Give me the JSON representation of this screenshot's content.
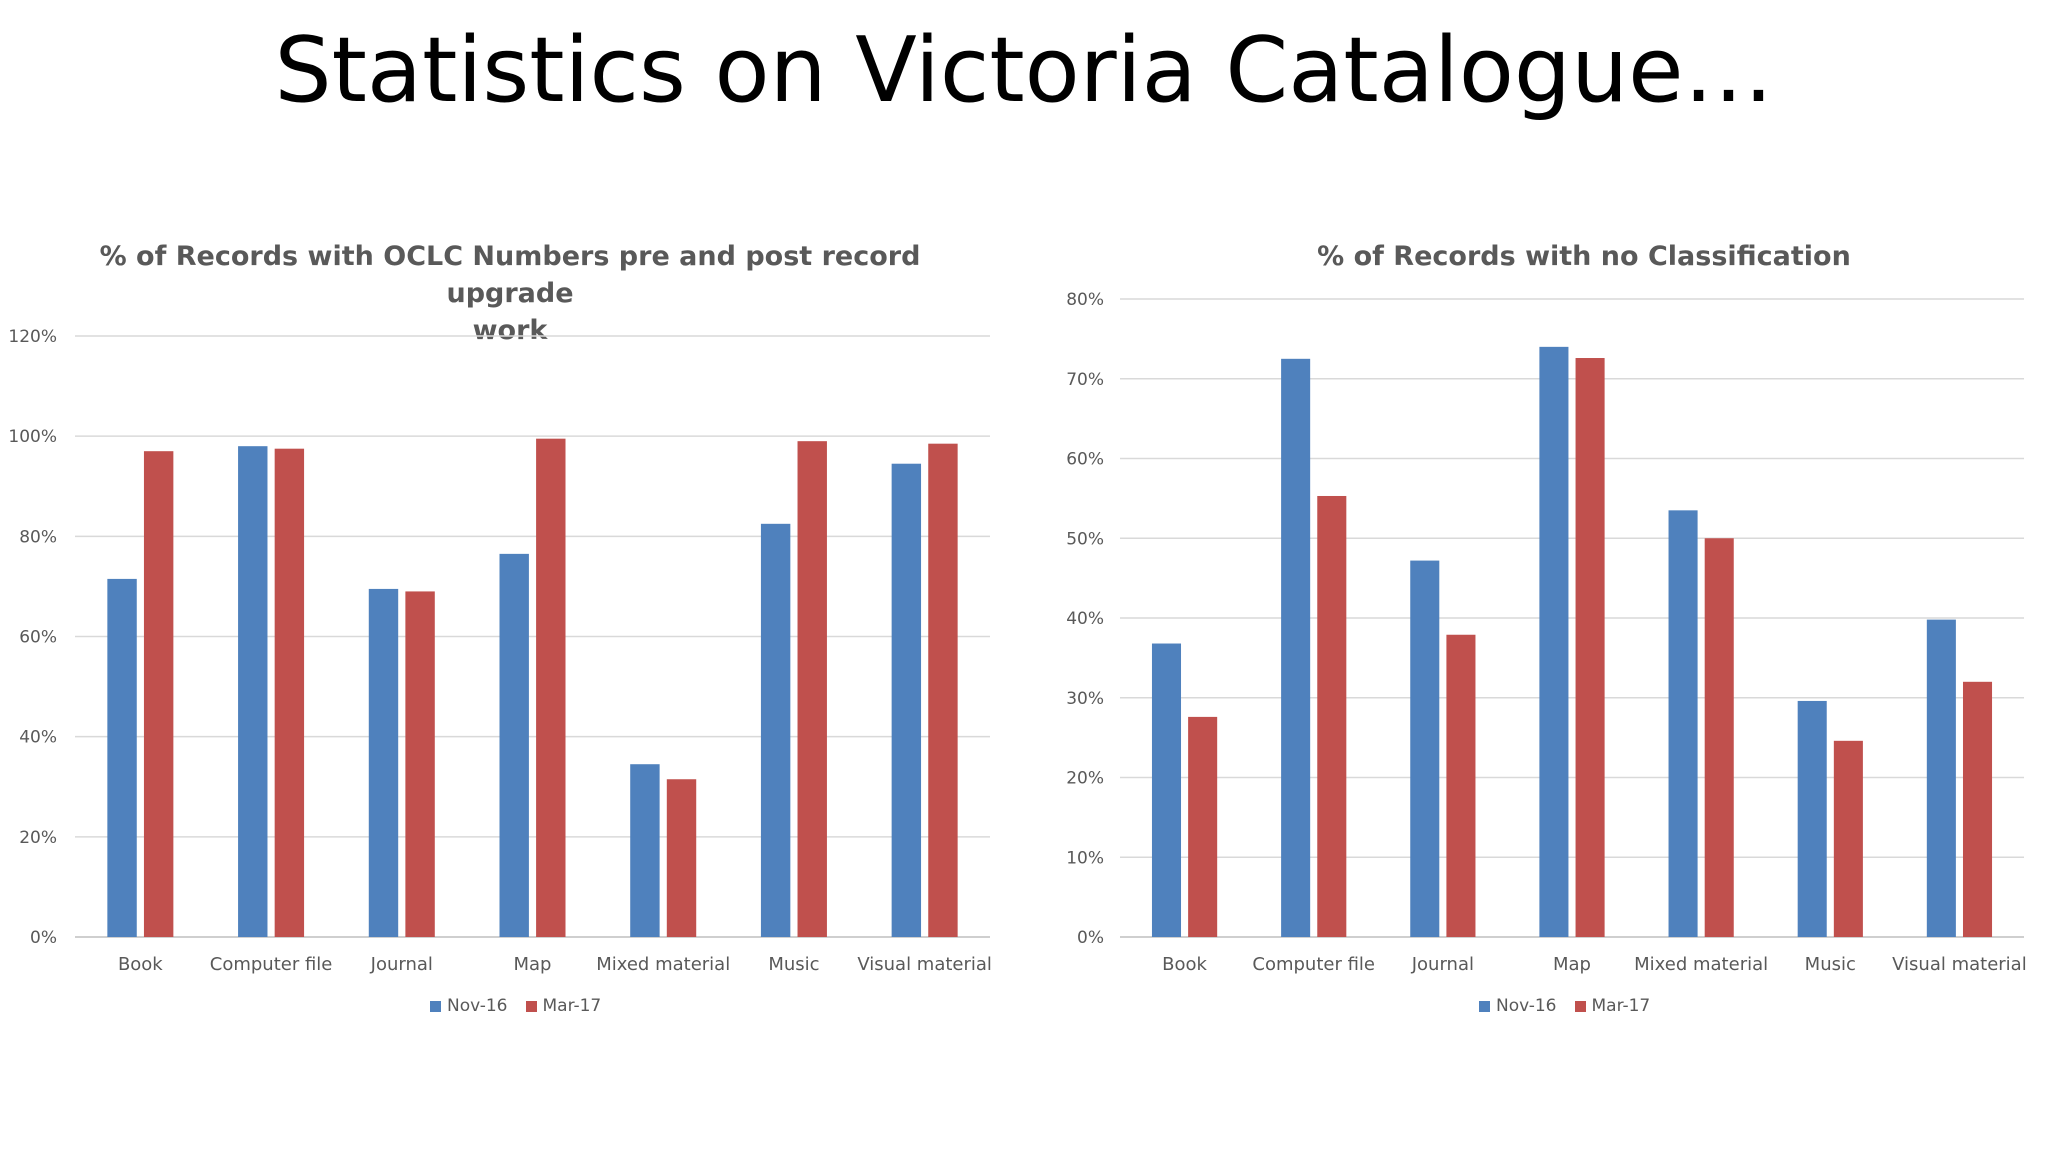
{
  "slide": {
    "title": "Statistics on Victoria Catalogue…"
  },
  "colors": {
    "nov16": "#4f81bd",
    "mar17": "#c0504d",
    "grid": "#d9d9d9",
    "text": "#595959"
  },
  "chart_data": [
    {
      "type": "bar",
      "title": "% of Records with OCLC Numbers pre and post record upgrade work",
      "title_lines": [
        "% of Records with OCLC Numbers pre and post record upgrade",
        "work"
      ],
      "categories": [
        "Book",
        "Computer file",
        "Journal",
        "Map",
        "Mixed material",
        "Music",
        "Visual material"
      ],
      "series": [
        {
          "name": "Nov-16",
          "values": [
            71.5,
            98,
            69.5,
            76.5,
            34.5,
            82.5,
            94.5
          ]
        },
        {
          "name": "Mar-17",
          "values": [
            97,
            97.5,
            69,
            99.5,
            31.5,
            99,
            98.5
          ]
        }
      ],
      "ylim": [
        0,
        120
      ],
      "yticks": [
        0,
        20,
        40,
        60,
        80,
        100,
        120
      ],
      "ytick_labels": [
        "0%",
        "20%",
        "40%",
        "60%",
        "80%",
        "100%",
        "120%"
      ],
      "grid": true,
      "legend": "bottom"
    },
    {
      "type": "bar",
      "title": "% of Records with no Classification",
      "title_lines": [
        "% of Records with no Classification"
      ],
      "categories": [
        "Book",
        "Computer file",
        "Journal",
        "Map",
        "Mixed material",
        "Music",
        "Visual material"
      ],
      "series": [
        {
          "name": "Nov-16",
          "values": [
            36.8,
            72.5,
            47.2,
            74,
            53.5,
            29.6,
            39.8
          ]
        },
        {
          "name": "Mar-17",
          "values": [
            27.6,
            55.3,
            37.9,
            72.6,
            50,
            24.6,
            32
          ]
        }
      ],
      "ylim": [
        0,
        80
      ],
      "yticks": [
        0,
        10,
        20,
        30,
        40,
        50,
        60,
        70,
        80
      ],
      "ytick_labels": [
        "0%",
        "10%",
        "20%",
        "30%",
        "40%",
        "50%",
        "60%",
        "70%",
        "80%"
      ],
      "grid": true,
      "legend": "bottom"
    }
  ]
}
